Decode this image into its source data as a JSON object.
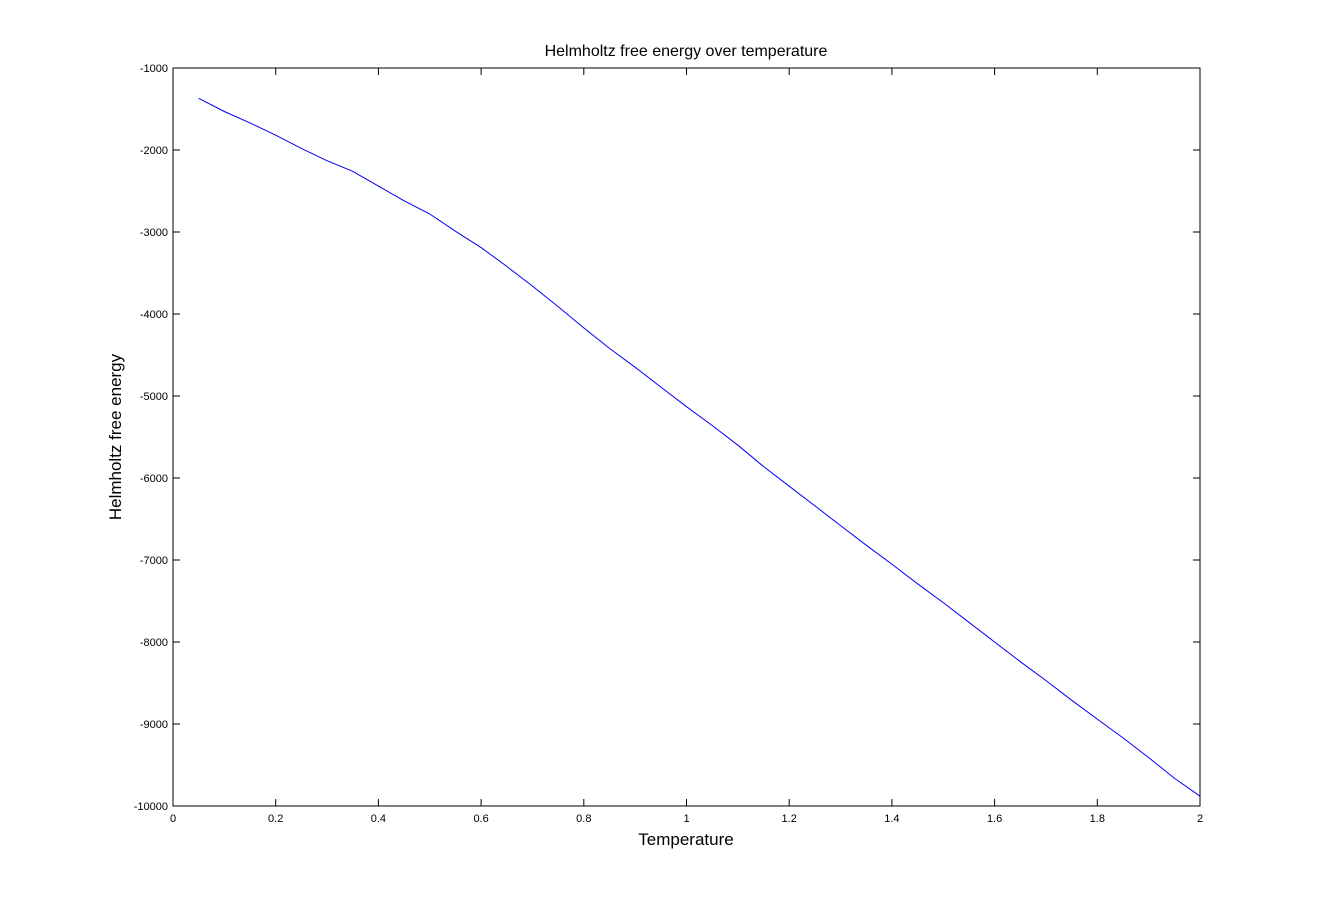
{
  "chart_data": {
    "type": "line",
    "title": "Helmholtz free energy over temperature",
    "xlabel": "Temperature",
    "ylabel": "Helmholtz free energy",
    "xlim": [
      0,
      2
    ],
    "ylim": [
      -10000,
      -1000
    ],
    "x_ticks": [
      "0",
      "0.2",
      "0.4",
      "0.6",
      "0.8",
      "1",
      "1.2",
      "1.4",
      "1.6",
      "1.8",
      "2"
    ],
    "y_ticks": [
      "-1000",
      "-2000",
      "-3000",
      "-4000",
      "-5000",
      "-6000",
      "-7000",
      "-8000",
      "-9000",
      "-10000"
    ],
    "grid": false,
    "legend": "none",
    "series": [
      {
        "color": "#0000ff",
        "x": [
          0.05,
          0.1,
          0.15,
          0.2,
          0.25,
          0.3,
          0.35,
          0.4,
          0.45,
          0.5,
          0.55,
          0.6,
          0.65,
          0.7,
          0.75,
          0.8,
          0.85,
          0.9,
          0.95,
          1.0,
          1.05,
          1.1,
          1.15,
          1.2,
          1.25,
          1.3,
          1.35,
          1.4,
          1.45,
          1.5,
          1.55,
          1.6,
          1.65,
          1.7,
          1.75,
          1.8,
          1.85,
          1.9,
          1.95,
          2.0
        ],
        "y": [
          -1370,
          -1530,
          -1670,
          -1820,
          -1980,
          -2130,
          -2260,
          -2440,
          -2620,
          -2780,
          -2990,
          -3190,
          -3420,
          -3660,
          -3910,
          -4170,
          -4420,
          -4650,
          -4890,
          -5130,
          -5360,
          -5600,
          -5860,
          -6100,
          -6340,
          -6580,
          -6820,
          -7050,
          -7290,
          -7520,
          -7760,
          -8000,
          -8240,
          -8470,
          -8710,
          -8940,
          -9170,
          -9410,
          -9660,
          -9880
        ]
      }
    ]
  }
}
